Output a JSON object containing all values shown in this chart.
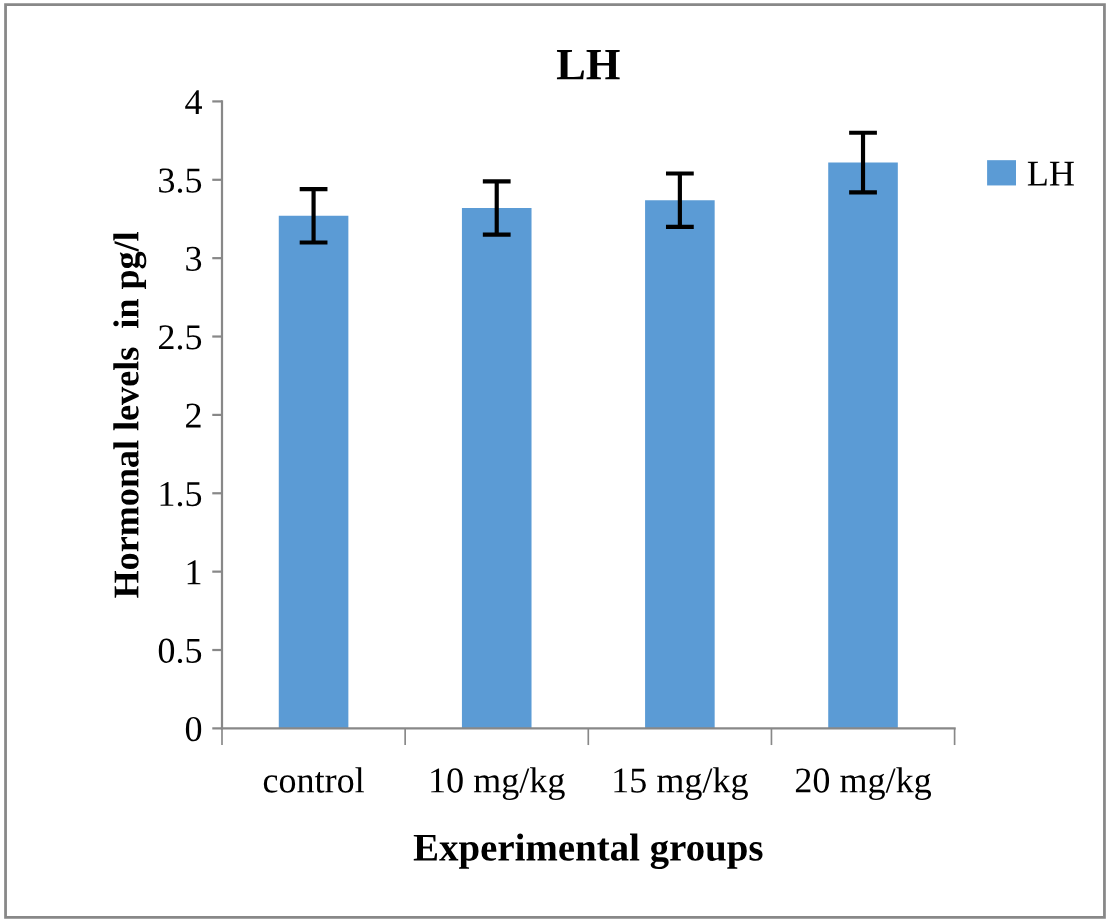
{
  "chart_data": {
    "type": "bar",
    "title": "LH",
    "xlabel": "Experimental groups",
    "ylabel": "Hormonal levels  in pg/l",
    "categories": [
      "control",
      "10 mg/kg",
      "15 mg/kg",
      "20 mg/kg"
    ],
    "series": [
      {
        "name": "LH",
        "color": "#5b9bd5",
        "values": [
          3.27,
          3.32,
          3.37,
          3.61
        ],
        "errors": [
          0.17,
          0.17,
          0.17,
          0.19
        ]
      }
    ],
    "ylim": [
      0,
      4
    ],
    "yticks": [
      0,
      0.5,
      1,
      1.5,
      2,
      2.5,
      3,
      3.5,
      4
    ],
    "grid": false,
    "legend": "right"
  }
}
